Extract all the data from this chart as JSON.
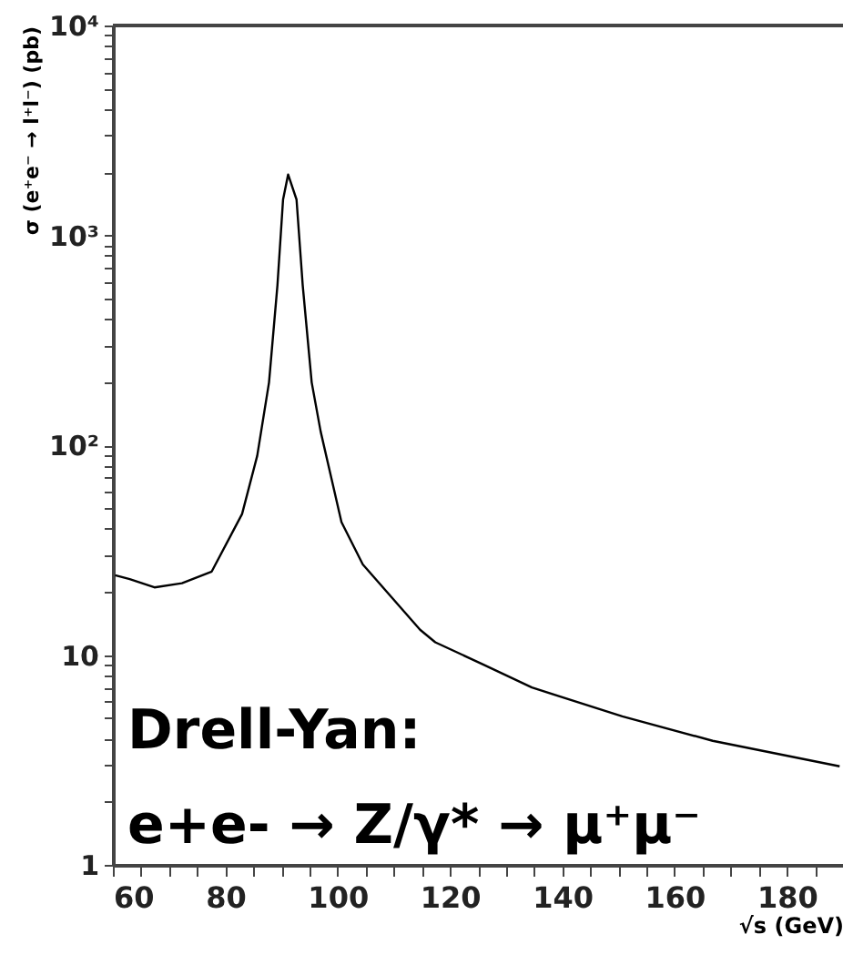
{
  "chart_data": {
    "type": "line",
    "xlabel": "√s (GeV)",
    "ylabel": "σ (e⁺e⁻ → l⁺l⁻) (pb)",
    "annotations": [
      "Drell-Yan:",
      "e+e- → Z/γ* → μ⁺μ⁻"
    ],
    "log": "y",
    "grid": false,
    "marker": "none",
    "line_style": "solid",
    "xlim": [
      60,
      190
    ],
    "ylim": [
      1,
      10000
    ],
    "xticks": [
      60,
      {
        "value": 65,
        "label": null
      },
      {
        "value": 70,
        "label": null
      },
      {
        "value": 75,
        "label": null
      },
      80,
      {
        "value": 85,
        "label": null
      },
      {
        "value": 90,
        "label": null
      },
      {
        "value": 95,
        "label": null
      },
      100,
      {
        "value": 105,
        "label": null
      },
      {
        "value": 110,
        "label": null
      },
      {
        "value": 115,
        "label": null
      },
      120,
      {
        "value": 125,
        "label": null
      },
      {
        "value": 130,
        "label": null
      },
      {
        "value": 135,
        "label": null
      },
      140,
      {
        "value": 145,
        "label": null
      },
      {
        "value": 150,
        "label": null
      },
      {
        "value": 155,
        "label": null
      },
      160,
      {
        "value": 165,
        "label": null
      },
      {
        "value": 170,
        "label": null
      },
      {
        "value": 175,
        "label": null
      },
      180,
      {
        "value": 185,
        "label": null
      }
    ],
    "yticks": [
      1,
      {
        "value": 2,
        "label": null
      },
      {
        "value": 3,
        "label": null
      },
      {
        "value": 4,
        "label": null
      },
      {
        "value": 5,
        "label": null
      },
      {
        "value": 6,
        "label": null
      },
      {
        "value": 7,
        "label": null
      },
      {
        "value": 8,
        "label": null
      },
      {
        "value": 9,
        "label": null
      },
      10,
      {
        "value": 20,
        "label": null
      },
      {
        "value": 30,
        "label": null
      },
      {
        "value": 40,
        "label": null
      },
      {
        "value": 50,
        "label": null
      },
      {
        "value": 60,
        "label": null
      },
      {
        "value": 70,
        "label": null
      },
      {
        "value": 80,
        "label": null
      },
      {
        "value": 90,
        "label": null
      },
      {
        "value": 100,
        "label": "10²"
      },
      {
        "value": 200,
        "label": null
      },
      {
        "value": 300,
        "label": null
      },
      {
        "value": 400,
        "label": null
      },
      {
        "value": 500,
        "label": null
      },
      {
        "value": 600,
        "label": null
      },
      {
        "value": 700,
        "label": null
      },
      {
        "value": 800,
        "label": null
      },
      {
        "value": 900,
        "label": null
      },
      {
        "value": 1000,
        "label": "10³"
      },
      {
        "value": 2000,
        "label": null
      },
      {
        "value": 3000,
        "label": null
      },
      {
        "value": 4000,
        "label": null
      },
      {
        "value": 5000,
        "label": null
      },
      {
        "value": 6000,
        "label": null
      },
      {
        "value": 7000,
        "label": null
      },
      {
        "value": 8000,
        "label": null
      },
      {
        "value": 9000,
        "label": null
      },
      {
        "value": 10000,
        "label": "10⁴"
      }
    ],
    "series": [
      {
        "color": "#000000",
        "x": [
          60.4,
          63,
          67.4,
          72.3,
          77.6,
          83,
          85.7,
          87.8,
          89.3,
          90.3,
          91.2,
          92.7,
          93.8,
          95.4,
          97,
          100.7,
          104.5,
          114.7,
          117.4,
          126,
          134.6,
          150.7,
          166.8,
          189.4
        ],
        "values": [
          24,
          23,
          21,
          22,
          25,
          47,
          89,
          199,
          578,
          1480,
          1950,
          1480,
          578,
          199,
          116,
          43,
          27,
          13.2,
          11.5,
          9.0,
          7.0,
          5.1,
          3.9,
          2.95
        ]
      }
    ]
  }
}
